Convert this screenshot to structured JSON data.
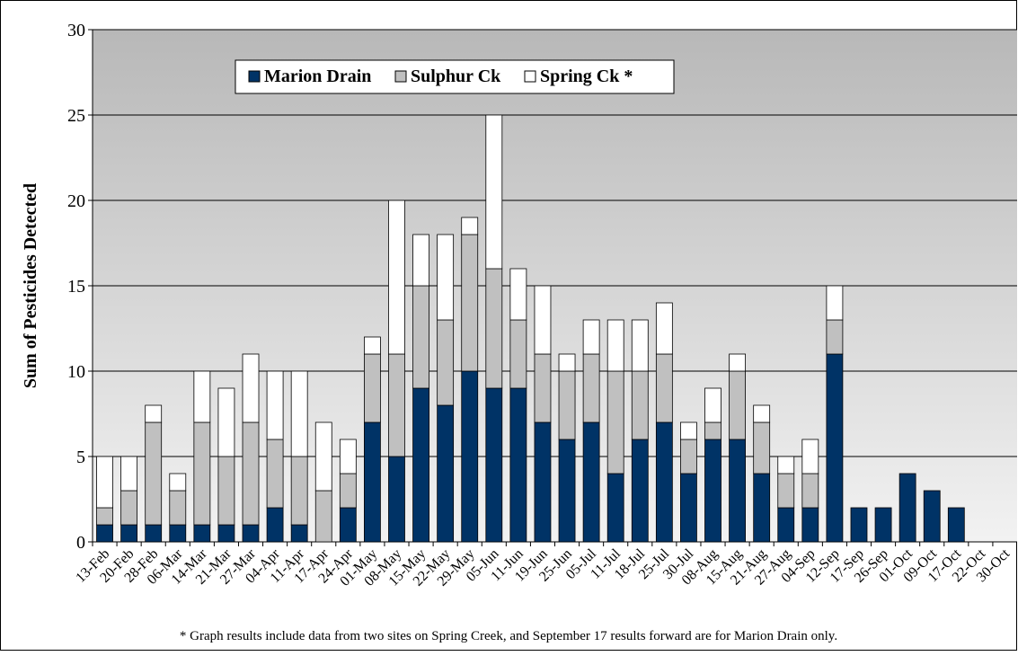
{
  "chart_data": {
    "type": "stacked_bar",
    "y_label": "Sum of Pesticides Detected",
    "footnote": "* Graph results include data from two sites on Spring Creek, and September 17 results forward are for Marion Drain only.",
    "categories": [
      "13-Feb",
      "20-Feb",
      "28-Feb",
      "06-Mar",
      "14-Mar",
      "21-Mar",
      "27-Mar",
      "04-Apr",
      "11-Apr",
      "17-Apr",
      "24-Apr",
      "01-May",
      "08-May",
      "15-May",
      "22-May",
      "29-May",
      "05-Jun",
      "11-Jun",
      "19-Jun",
      "25-Jun",
      "05-Jul",
      "11-Jul",
      "18-Jul",
      "25-Jul",
      "30-Jul",
      "08-Aug",
      "15-Aug",
      "21-Aug",
      "27-Aug",
      "04-Sep",
      "12-Sep",
      "17-Sep",
      "26-Sep",
      "01-Oct",
      "09-Oct",
      "17-Oct",
      "22-Oct",
      "30-Oct"
    ],
    "series": [
      {
        "name": "Marion Drain",
        "color": "#003366",
        "values": [
          1,
          1,
          1,
          1,
          1,
          1,
          1,
          2,
          1,
          0,
          2,
          7,
          5,
          9,
          8,
          10,
          9,
          9,
          7,
          6,
          7,
          4,
          6,
          7,
          4,
          6,
          6,
          4,
          2,
          2,
          11,
          2,
          2,
          4,
          3,
          2,
          0,
          0
        ]
      },
      {
        "name": "Sulphur Ck",
        "color": "#c0c0c0",
        "values": [
          1,
          2,
          6,
          2,
          6,
          4,
          6,
          4,
          4,
          3,
          2,
          4,
          6,
          6,
          5,
          8,
          7,
          4,
          4,
          4,
          4,
          6,
          4,
          4,
          2,
          1,
          4,
          3,
          2,
          2,
          2,
          0,
          0,
          0,
          0,
          0,
          0,
          0
        ]
      },
      {
        "name": "Spring Ck *",
        "color": "#ffffff",
        "values": [
          3,
          2,
          1,
          1,
          3,
          4,
          4,
          4,
          5,
          4,
          2,
          1,
          9,
          3,
          5,
          1,
          9,
          3,
          4,
          1,
          2,
          3,
          3,
          3,
          1,
          2,
          1,
          1,
          1,
          2,
          2,
          0,
          0,
          0,
          0,
          0,
          0,
          0
        ]
      }
    ],
    "ylim": [
      0,
      30
    ],
    "yticks": [
      0,
      5,
      10,
      15,
      20,
      25,
      30
    ],
    "grid": true
  }
}
